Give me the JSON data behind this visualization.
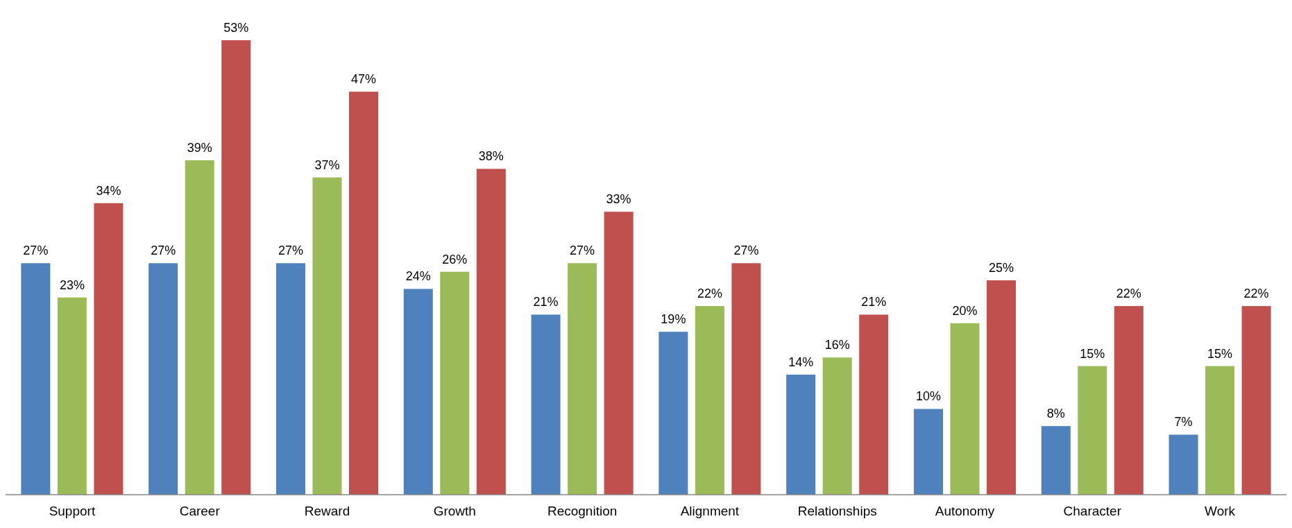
{
  "chart_data": {
    "type": "bar",
    "categories": [
      "Support",
      "Career",
      "Reward",
      "Growth",
      "Recognition",
      "Alignment",
      "Relationships",
      "Autonomy",
      "Character",
      "Work"
    ],
    "series": [
      {
        "color": "#4f81bd",
        "values": [
          27,
          27,
          27,
          24,
          21,
          19,
          14,
          10,
          8,
          7
        ],
        "value_labels": [
          "27%",
          "27%",
          "27%",
          "24%",
          "21%",
          "19%",
          "14%",
          "10%",
          "8%",
          "7%"
        ]
      },
      {
        "color": "#9bbb59",
        "values": [
          23,
          39,
          37,
          26,
          27,
          22,
          16,
          20,
          15,
          15
        ],
        "value_labels": [
          "23%",
          "39%",
          "37%",
          "26%",
          "27%",
          "22%",
          "16%",
          "20%",
          "15%",
          "15%"
        ]
      },
      {
        "color": "#c0504d",
        "values": [
          34,
          53,
          47,
          38,
          33,
          27,
          21,
          25,
          22,
          22
        ],
        "value_labels": [
          "34%",
          "53%",
          "47%",
          "38%",
          "33%",
          "27%",
          "21%",
          "25%",
          "22%",
          "22%"
        ]
      }
    ]
  }
}
